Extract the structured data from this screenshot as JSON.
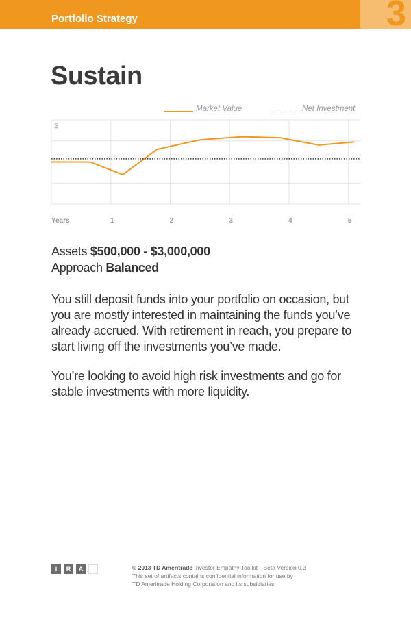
{
  "header": {
    "section": "Portfolio Strategy",
    "number": "3",
    "accent": "#f0971f"
  },
  "title": "Sustain",
  "chart_data": {
    "type": "line",
    "y_axis_label": "$",
    "x_axis_label": "Years",
    "x_ticks": [
      "1",
      "2",
      "3",
      "4",
      "5"
    ],
    "grid": true,
    "legend": {
      "placement": "top-right",
      "entries": [
        "Market Value",
        "Net Investment"
      ]
    },
    "series": [
      {
        "name": "Market Value",
        "style": "solid",
        "color": "#f0971f",
        "x": [
          0,
          0.65,
          1.2,
          1.78,
          2.5,
          3.2,
          3.85,
          4.5,
          5.1
        ],
        "y": [
          2.0,
          2.0,
          1.4,
          2.6,
          3.05,
          3.2,
          3.15,
          2.8,
          2.95
        ]
      },
      {
        "name": "Net Investment",
        "style": "dotted",
        "color": "#333333",
        "x": [
          0,
          5.2
        ],
        "y": [
          2.15,
          2.15
        ]
      }
    ],
    "xlim": [
      0,
      5.2
    ],
    "ylim": [
      0,
      4
    ]
  },
  "details": {
    "assets_label": "Assets",
    "assets_value": "$500,000 - $3,000,000",
    "approach_label": "Approach",
    "approach_value": "Balanced"
  },
  "paragraphs": [
    "You still deposit funds into your portfolio on occasion, but you are mostly interested in maintaining the funds you’ve already accrued. With retirement in reach, you prepare to start living off the investments you’ve made.",
    "You’re looking to avoid high risk investments and go for stable investments with more liquidity."
  ],
  "footer": {
    "boxes": [
      "I",
      "R",
      "A",
      ""
    ],
    "copyright": "© 2013 TD Ameritrade",
    "toolkit": "Investor Empathy Toolkit—Beta Version 0.3",
    "line2": "This set of artifacts contains confidential information for use by",
    "line3": "TD Ameritrade Holding Corporation and its subsidiaries."
  }
}
